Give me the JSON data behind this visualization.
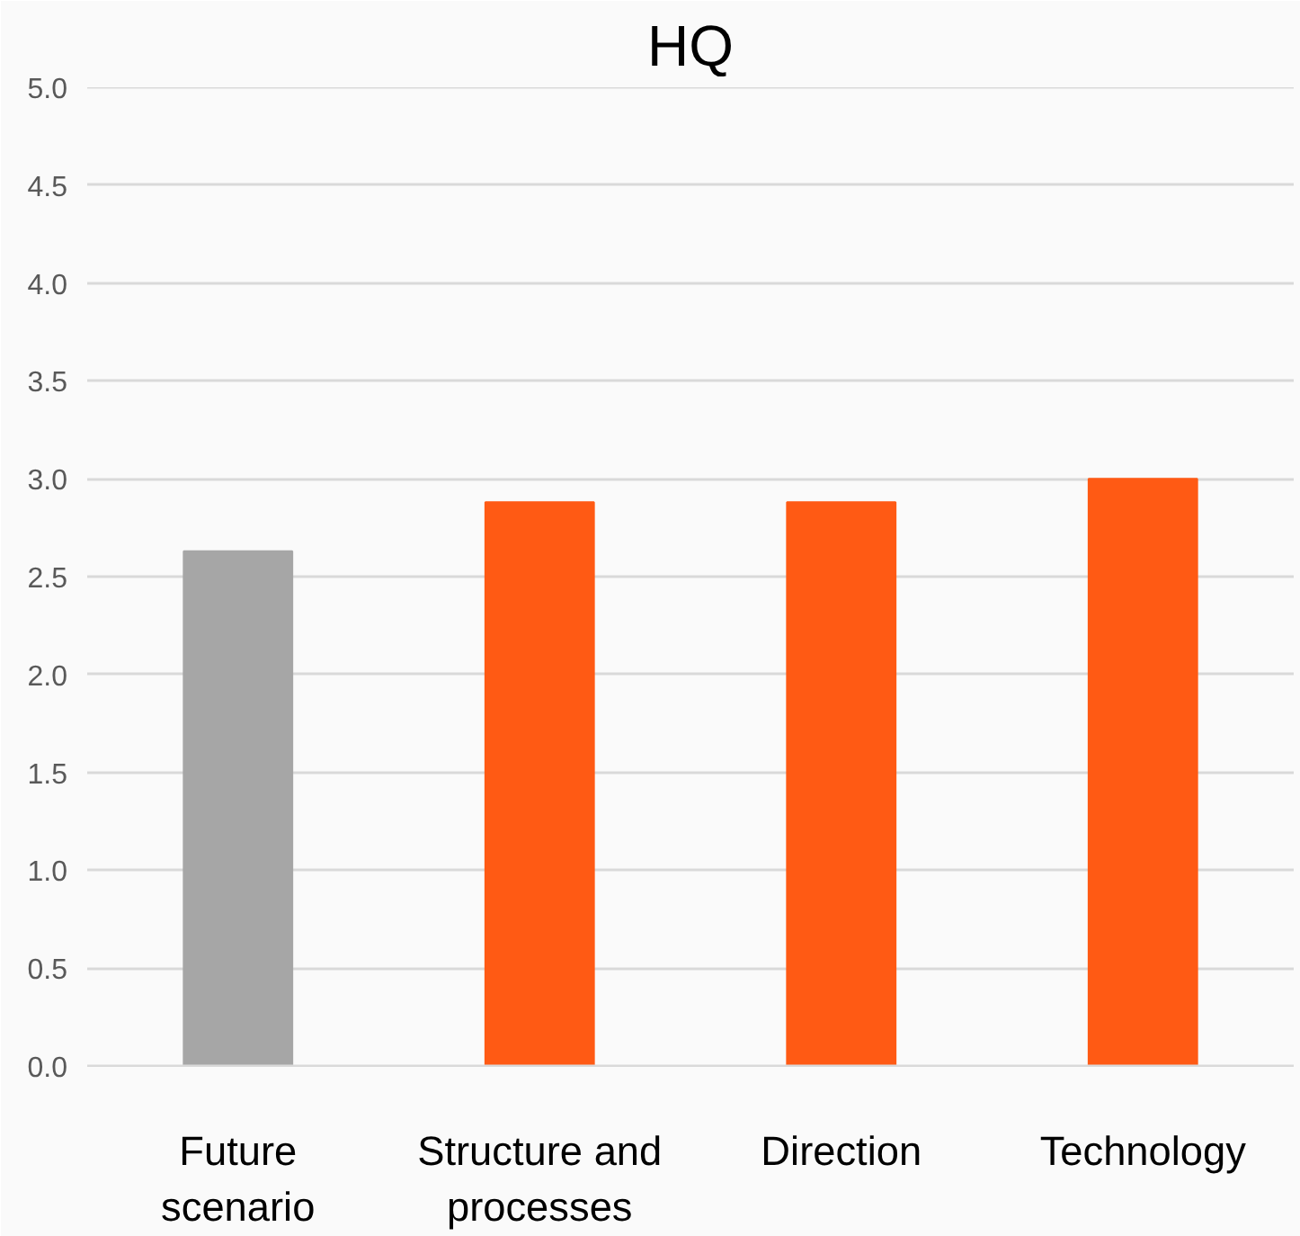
{
  "chart_data": {
    "type": "bar",
    "title": "HQ",
    "categories": [
      "Future scenario",
      "Structure and processes",
      "Direction",
      "Technology"
    ],
    "values": [
      2.63,
      2.88,
      2.88,
      3.0
    ],
    "colors": [
      "#a6a6a6",
      "#ff5a14",
      "#ff5a14",
      "#ff5a14"
    ],
    "ylim": [
      0,
      5
    ],
    "yticks": [
      {
        "value": 0,
        "label": "0.0"
      },
      {
        "value": 0.5,
        "label": "0.5"
      },
      {
        "value": 1,
        "label": "1.0"
      },
      {
        "value": 1.5,
        "label": "1.5"
      },
      {
        "value": 2,
        "label": "2.0"
      },
      {
        "value": 2.5,
        "label": "2.5"
      },
      {
        "value": 3,
        "label": "3.0"
      },
      {
        "value": 3.5,
        "label": "3.5"
      },
      {
        "value": 4,
        "label": "4.0"
      },
      {
        "value": 4.5,
        "label": "4.5"
      },
      {
        "value": 5,
        "label": "5.0"
      }
    ],
    "grid": "y"
  }
}
